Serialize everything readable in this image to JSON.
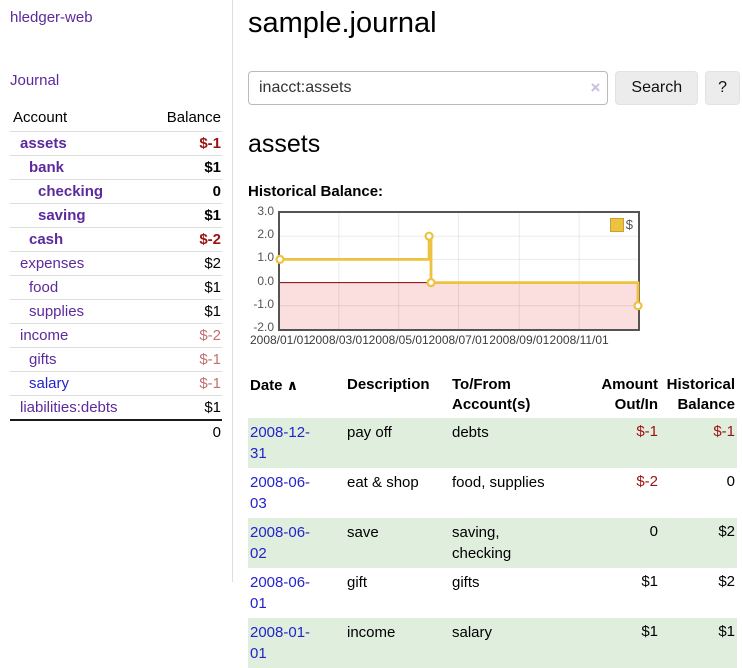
{
  "palette": {
    "purple_link": "#5c2a9d",
    "blue_link": "#2323cc",
    "negative": "#9e1111",
    "negative_faded": "#c47070",
    "row_stripe_green": "#dfeedd",
    "chart_line": "#edc240",
    "chart_negative_fill": "#fbdede",
    "chart_zero_line": "#800000",
    "chart_border": "#545454",
    "chart_grid_line": "rgba(0,0,0,0.08)"
  },
  "sidebar": {
    "app_title": "hledger-web",
    "nav": [
      {
        "label": "Journal"
      }
    ],
    "table": {
      "account_header": "Account",
      "balance_header": "Balance",
      "accounts": [
        {
          "name": "assets",
          "balance": "$-1",
          "indent": 0,
          "bold": true,
          "name_color": "purple",
          "balance_color": "negative"
        },
        {
          "name": "bank",
          "balance": "$1",
          "indent": 1,
          "bold": true,
          "name_color": "purple",
          "balance_color": "text"
        },
        {
          "name": "checking",
          "balance": "0",
          "indent": 2,
          "bold": true,
          "name_color": "purple",
          "balance_color": "text"
        },
        {
          "name": "saving",
          "balance": "$1",
          "indent": 2,
          "bold": true,
          "name_color": "purple",
          "balance_color": "text"
        },
        {
          "name": "cash",
          "balance": "$-2",
          "indent": 1,
          "bold": true,
          "name_color": "purple",
          "balance_color": "negative"
        },
        {
          "name": "expenses",
          "balance": "$2",
          "indent": 0,
          "bold": false,
          "name_color": "purple",
          "balance_color": "text"
        },
        {
          "name": "food",
          "balance": "$1",
          "indent": 1,
          "bold": false,
          "name_color": "purple",
          "balance_color": "text"
        },
        {
          "name": "supplies",
          "balance": "$1",
          "indent": 1,
          "bold": false,
          "name_color": "purple",
          "balance_color": "text"
        },
        {
          "name": "income",
          "balance": "$-2",
          "indent": 0,
          "bold": false,
          "name_color": "purple",
          "balance_color": "negative_faded"
        },
        {
          "name": "gifts",
          "balance": "$-1",
          "indent": 1,
          "bold": false,
          "name_color": "purple",
          "balance_color": "negative_faded"
        },
        {
          "name": "salary",
          "balance": "$-1",
          "indent": 1,
          "bold": false,
          "name_color": "blue",
          "balance_color": "negative_faded"
        },
        {
          "name": "liabilities:debts",
          "balance": "$1",
          "indent": 0,
          "bold": false,
          "name_color": "purple",
          "balance_color": "text"
        }
      ],
      "total": "0"
    }
  },
  "header": {
    "title": "sample.journal"
  },
  "search": {
    "value": "inacct:assets",
    "clear_icon": "×",
    "button_label": "Search",
    "help_label": "?"
  },
  "account_page": {
    "heading": "assets",
    "chart_label": "Historical Balance:"
  },
  "chart_data": {
    "type": "line",
    "style": "step",
    "title": "Historical Balance",
    "series": [
      {
        "name": "$",
        "points": [
          [
            "2008-01-01",
            1
          ],
          [
            "2008-06-01",
            2
          ],
          [
            "2008-06-03",
            0
          ],
          [
            "2008-12-31",
            -1
          ]
        ]
      }
    ],
    "x_start": "2008-01-01",
    "x_end": "2008-12-31",
    "x_ticks": [
      "2008/01/01",
      "2008/03/01",
      "2008/05/01",
      "2008/07/01",
      "2008/09/01",
      "2008/11/01"
    ],
    "y_ticks": [
      3.0,
      2.0,
      1.0,
      0.0,
      -1.0,
      -2.0
    ],
    "ylim": [
      -2,
      3
    ],
    "legend": "$",
    "legend_position": "top-right",
    "grid": true,
    "negative_region_shaded": true
  },
  "transactions": {
    "headers": {
      "date": "Date",
      "sort_icon": "∧",
      "description": "Description",
      "accounts": "To/From Account(s)",
      "amount": "Amount Out/In",
      "balance": "Historical Balance"
    },
    "rows": [
      {
        "date": "2008-12-31",
        "description": "pay off",
        "accounts": "debts",
        "amount": "$-1",
        "balance": "$-1",
        "amount_color": "negative",
        "balance_color": "negative"
      },
      {
        "date": "2008-06-03",
        "description": "eat & shop",
        "accounts": "food, supplies",
        "amount": "$-2",
        "balance": "0",
        "amount_color": "negative",
        "balance_color": "text"
      },
      {
        "date": "2008-06-02",
        "description": "save",
        "accounts": "saving, checking",
        "amount": "0",
        "balance": "$2",
        "amount_color": "text",
        "balance_color": "text"
      },
      {
        "date": "2008-06-01",
        "description": "gift",
        "accounts": "gifts",
        "amount": "$1",
        "balance": "$2",
        "amount_color": "text",
        "balance_color": "text"
      },
      {
        "date": "2008-01-01",
        "description": "income",
        "accounts": "salary",
        "amount": "$1",
        "balance": "$1",
        "amount_color": "text",
        "balance_color": "text"
      }
    ]
  }
}
